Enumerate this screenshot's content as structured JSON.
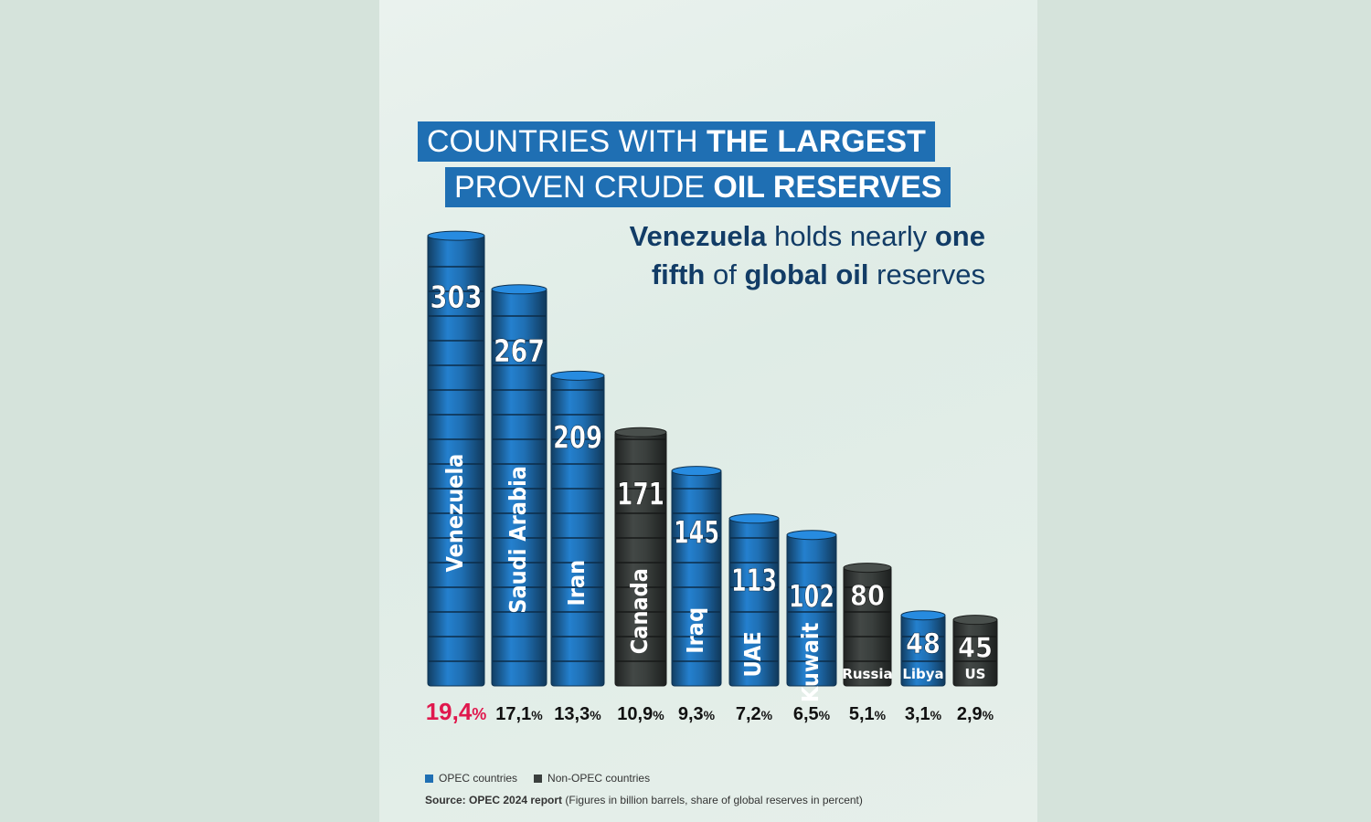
{
  "title": {
    "line1_a": "COUNTRIES WITH ",
    "line1_b": "THE LARGEST",
    "line2_a": "PROVEN CRUDE ",
    "line2_b": "OIL RESERVES"
  },
  "subtitle": {
    "p1": "Venezuela",
    "p2": " holds nearly ",
    "p3": "one",
    "p4": "fifth",
    "p5": " of ",
    "p6": "global oil",
    "p7": " reserves"
  },
  "colors": {
    "opec": "#1f6fb3",
    "non_opec": "#3a3f3d",
    "highlight": "#e0184d",
    "title_bg": "#1f6fb3"
  },
  "chart_data": {
    "type": "bar",
    "unit": "billion barrels",
    "categories": [
      "Venezuela",
      "Saudi Arabia",
      "Iran",
      "Canada",
      "Iraq",
      "UAE",
      "Kuwait",
      "Russia",
      "Libya",
      "US"
    ],
    "values": [
      303,
      267,
      209,
      171,
      145,
      113,
      102,
      80,
      48,
      45
    ],
    "value_labels": [
      "303",
      "267",
      "209",
      "171",
      "145",
      "113",
      "102",
      "80",
      "48",
      "45"
    ],
    "shares": [
      "19,4",
      "17,1",
      "13,3",
      "10,9",
      "9,3",
      "7,2",
      "6,5",
      "5,1",
      "3,1",
      "2,9"
    ],
    "share_unit": "%",
    "group": [
      "OPEC",
      "OPEC",
      "OPEC",
      "Non-OPEC",
      "OPEC",
      "OPEC",
      "OPEC",
      "Non-OPEC",
      "OPEC",
      "Non-OPEC"
    ],
    "legend": [
      {
        "name": "OPEC countries",
        "color": "#1f6fb3"
      },
      {
        "name": "Non-OPEC countries",
        "color": "#3a3f3d"
      }
    ]
  },
  "footer": {
    "source_label": "Source: OPEC 2024 report",
    "source_note": " (Figures in billion barrels, share of global reserves in percent)"
  }
}
